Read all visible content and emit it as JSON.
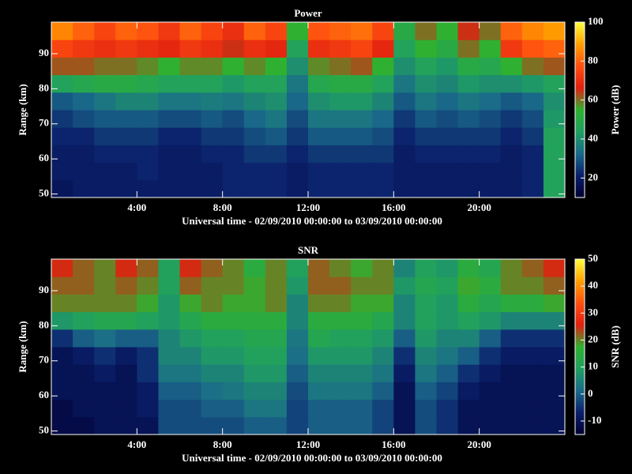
{
  "chart_data": [
    {
      "type": "heatmap",
      "title": "Power",
      "xlabel": "Universal time - 02/09/2010 00:00:00 to 03/09/2010 00:00:00",
      "ylabel": "Range (km)",
      "clabel": "Power (dB)",
      "xbins": [
        0,
        1,
        2,
        3,
        4,
        5,
        6,
        7,
        8,
        9,
        10,
        11,
        12,
        13,
        14,
        15,
        16,
        17,
        18,
        19,
        20,
        21,
        22,
        23,
        24
      ],
      "ybins": [
        49,
        54,
        59,
        64,
        69,
        74,
        79,
        84,
        89,
        94,
        99
      ],
      "values": [
        [
          18,
          20,
          20,
          20,
          20,
          20,
          20,
          20,
          22,
          22,
          22,
          20,
          22,
          22,
          22,
          22,
          20,
          20,
          20,
          20,
          20,
          20,
          22,
          45
        ],
        [
          20,
          20,
          20,
          20,
          22,
          20,
          20,
          20,
          22,
          22,
          22,
          20,
          22,
          22,
          22,
          22,
          20,
          20,
          20,
          20,
          20,
          20,
          22,
          45
        ],
        [
          20,
          20,
          22,
          22,
          22,
          20,
          20,
          22,
          22,
          25,
          25,
          22,
          25,
          25,
          25,
          25,
          20,
          22,
          22,
          22,
          22,
          20,
          22,
          45
        ],
        [
          22,
          22,
          25,
          25,
          25,
          22,
          22,
          25,
          25,
          28,
          30,
          25,
          30,
          30,
          30,
          28,
          22,
          25,
          25,
          25,
          25,
          22,
          25,
          45
        ],
        [
          25,
          28,
          30,
          30,
          30,
          28,
          28,
          30,
          28,
          32,
          35,
          28,
          35,
          35,
          35,
          32,
          25,
          30,
          28,
          30,
          28,
          25,
          28,
          42
        ],
        [
          30,
          32,
          35,
          38,
          38,
          35,
          35,
          36,
          35,
          38,
          40,
          32,
          40,
          42,
          42,
          38,
          30,
          35,
          32,
          35,
          33,
          30,
          32,
          40
        ],
        [
          45,
          48,
          50,
          50,
          48,
          45,
          45,
          45,
          42,
          45,
          45,
          35,
          48,
          50,
          50,
          45,
          35,
          40,
          38,
          42,
          40,
          40,
          42,
          45
        ],
        [
          62,
          62,
          60,
          60,
          58,
          55,
          58,
          58,
          55,
          58,
          55,
          40,
          58,
          60,
          62,
          55,
          40,
          45,
          42,
          50,
          48,
          55,
          60,
          62
        ],
        [
          75,
          72,
          70,
          72,
          70,
          68,
          72,
          70,
          65,
          70,
          68,
          45,
          70,
          72,
          75,
          68,
          45,
          55,
          50,
          60,
          55,
          72,
          78,
          80
        ],
        [
          85,
          80,
          75,
          80,
          78,
          72,
          80,
          75,
          70,
          80,
          75,
          55,
          78,
          80,
          82,
          75,
          50,
          60,
          55,
          65,
          60,
          80,
          85,
          88
        ]
      ],
      "xlim": [
        0,
        24
      ],
      "ylim": [
        49,
        99
      ],
      "xticks": [
        {
          "value": 4,
          "label": "4:00"
        },
        {
          "value": 8,
          "label": "8:00"
        },
        {
          "value": 12,
          "label": "12:00"
        },
        {
          "value": 16,
          "label": "16:00"
        },
        {
          "value": 20,
          "label": "20:00"
        }
      ],
      "yticks": [
        50,
        60,
        70,
        80,
        90
      ],
      "clim": [
        10,
        100
      ],
      "cticks": [
        20,
        40,
        60,
        80,
        100
      ],
      "colormap": [
        "#000030",
        "#0a1f6b",
        "#1a6a8a",
        "#20a060",
        "#30b030",
        "#e02010",
        "#ff5010",
        "#ffa000",
        "#ffff40"
      ]
    },
    {
      "type": "heatmap",
      "title": "SNR",
      "xlabel": "Universal time - 02/09/2010 00:00:00 to 03/09/2010 00:00:00",
      "ylabel": "Range (km)",
      "clabel": "SNR (dB)",
      "xbins": [
        0,
        1,
        2,
        3,
        4,
        5,
        6,
        7,
        8,
        9,
        10,
        11,
        12,
        13,
        14,
        15,
        16,
        17,
        18,
        19,
        20,
        21,
        22,
        23,
        24
      ],
      "ybins": [
        49,
        54,
        59,
        64,
        69,
        74,
        79,
        84,
        89,
        94,
        99
      ],
      "values": [
        [
          -12,
          -12,
          -10,
          -10,
          -10,
          -2,
          -2,
          -2,
          -2,
          0,
          0,
          -3,
          0,
          0,
          0,
          -3,
          -10,
          -2,
          -5,
          -10,
          -10,
          -10,
          -10,
          -10
        ],
        [
          -12,
          -10,
          -10,
          -10,
          -8,
          -2,
          -2,
          0,
          0,
          3,
          3,
          -3,
          0,
          0,
          0,
          -3,
          -10,
          -2,
          -5,
          -10,
          -10,
          -10,
          -10,
          -10
        ],
        [
          -10,
          -10,
          -10,
          -10,
          -8,
          0,
          0,
          2,
          3,
          5,
          5,
          -2,
          3,
          3,
          3,
          0,
          -10,
          0,
          -3,
          -8,
          -10,
          -10,
          -10,
          -10
        ],
        [
          -10,
          -10,
          -8,
          -10,
          -5,
          3,
          3,
          5,
          5,
          8,
          8,
          0,
          5,
          5,
          5,
          3,
          -8,
          3,
          0,
          -5,
          -8,
          -10,
          -10,
          -10
        ],
        [
          -10,
          -8,
          -5,
          -8,
          -5,
          5,
          5,
          8,
          8,
          10,
          10,
          2,
          8,
          8,
          8,
          5,
          -5,
          5,
          3,
          0,
          -5,
          -8,
          -8,
          -8
        ],
        [
          -5,
          0,
          2,
          0,
          0,
          5,
          8,
          10,
          10,
          12,
          12,
          3,
          12,
          10,
          10,
          8,
          0,
          8,
          5,
          5,
          0,
          -5,
          -5,
          -5
        ],
        [
          8,
          10,
          12,
          12,
          10,
          8,
          12,
          15,
          15,
          15,
          15,
          5,
          15,
          15,
          15,
          12,
          5,
          10,
          8,
          10,
          8,
          5,
          5,
          5
        ],
        [
          20,
          20,
          20,
          20,
          18,
          8,
          18,
          20,
          18,
          18,
          20,
          5,
          20,
          20,
          18,
          18,
          5,
          10,
          8,
          15,
          12,
          15,
          15,
          18
        ],
        [
          22,
          22,
          20,
          22,
          20,
          10,
          22,
          20,
          20,
          18,
          20,
          8,
          22,
          22,
          20,
          20,
          8,
          12,
          10,
          18,
          15,
          20,
          20,
          22
        ],
        [
          25,
          22,
          20,
          25,
          22,
          10,
          25,
          22,
          20,
          15,
          20,
          10,
          22,
          20,
          18,
          20,
          5,
          10,
          8,
          15,
          12,
          20,
          22,
          25
        ]
      ],
      "xlim": [
        0,
        24
      ],
      "ylim": [
        49,
        99
      ],
      "xticks": [
        {
          "value": 4,
          "label": "4:00"
        },
        {
          "value": 8,
          "label": "8:00"
        },
        {
          "value": 12,
          "label": "12:00"
        },
        {
          "value": 16,
          "label": "16:00"
        },
        {
          "value": 20,
          "label": "20:00"
        }
      ],
      "yticks": [
        50,
        60,
        70,
        80,
        90
      ],
      "clim": [
        -15,
        50
      ],
      "cticks": [
        -10,
        0,
        10,
        20,
        30,
        40,
        50
      ],
      "colormap": [
        "#000030",
        "#0a1f6b",
        "#1a6a8a",
        "#20a060",
        "#30b030",
        "#e02010",
        "#ff5010",
        "#ffa000",
        "#ffff40"
      ]
    }
  ]
}
